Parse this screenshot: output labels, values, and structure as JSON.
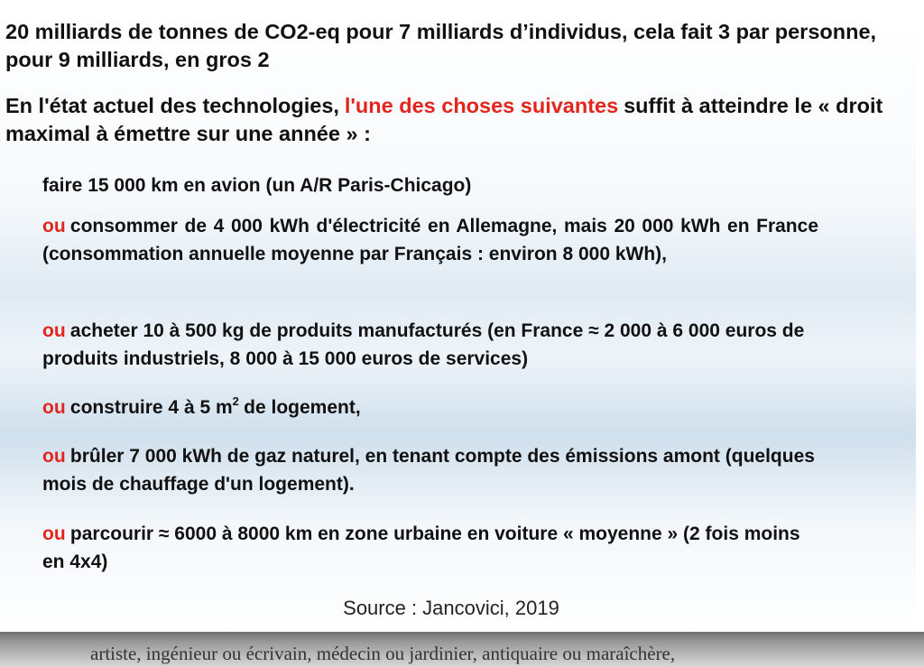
{
  "slide": {
    "heading_1": "20 milliards de tonnes de CO2-eq pour 7 milliards d’individus, cela fait 3 par personne, pour 9 milliards, en gros 2",
    "heading_2": {
      "before": "En l'état actuel des technologies,",
      "highlight": "l'une des choses suivantes",
      "after": "suffit à atteindre le « droit maximal à émettre sur une année » :"
    },
    "items": [
      {
        "text": "faire 15 000 km en avion (un A/R Paris-Chicago)"
      },
      {
        "prefix": "ou",
        "text": "consommer de 4 000 kWh d'électricité en Allemagne, mais 20 000 kWh en France (consommation annuelle moyenne par Français : environ 8 000 kWh),"
      },
      {
        "prefix": "ou",
        "text": "acheter 10 à 500 kg de produits manufacturés (en France ≈ 2 000 à 6 000 euros de produits industriels, 8 000 à 15 000 euros de services)"
      },
      {
        "prefix": "ou",
        "text": "construire 4 à 5 m",
        "superscript": "2",
        "text_after": "de logement,"
      },
      {
        "prefix": "ou",
        "text": "brûler 7 000 kWh de gaz naturel, en tenant compte des émissions amont (quelques mois de chauffage d'un logement)."
      },
      {
        "prefix": "ou",
        "text": "parcourir ≈ 6000 à 8000 km en zone urbaine en voiture « moyenne » (2 fois moins en 4x4)"
      }
    ],
    "source": "Source : Jancovici, 2019"
  },
  "page_text": "artiste, ingénieur ou écrivain, médecin ou jardinier, antiquaire ou maraîchère,"
}
